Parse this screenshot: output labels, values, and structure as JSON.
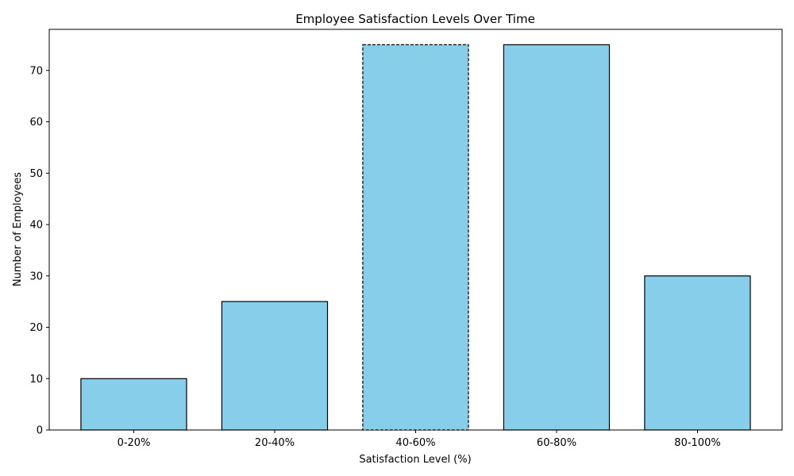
{
  "chart_data": {
    "type": "bar",
    "title": "Employee Satisfaction Levels Over Time",
    "xlabel": "Satisfaction Level (%)",
    "ylabel": "Number of Employees",
    "categories": [
      "0-20%",
      "20-40%",
      "40-60%",
      "60-80%",
      "80-100%"
    ],
    "values": [
      10,
      25,
      75,
      75,
      30
    ],
    "highlighted_category": "40-60%",
    "ylim": [
      0,
      78
    ],
    "yticks": [
      0,
      10,
      20,
      30,
      40,
      50,
      60,
      70
    ],
    "bar_color": "#87ceeb",
    "edge_color": "#000000",
    "grid": false,
    "legend": false
  }
}
